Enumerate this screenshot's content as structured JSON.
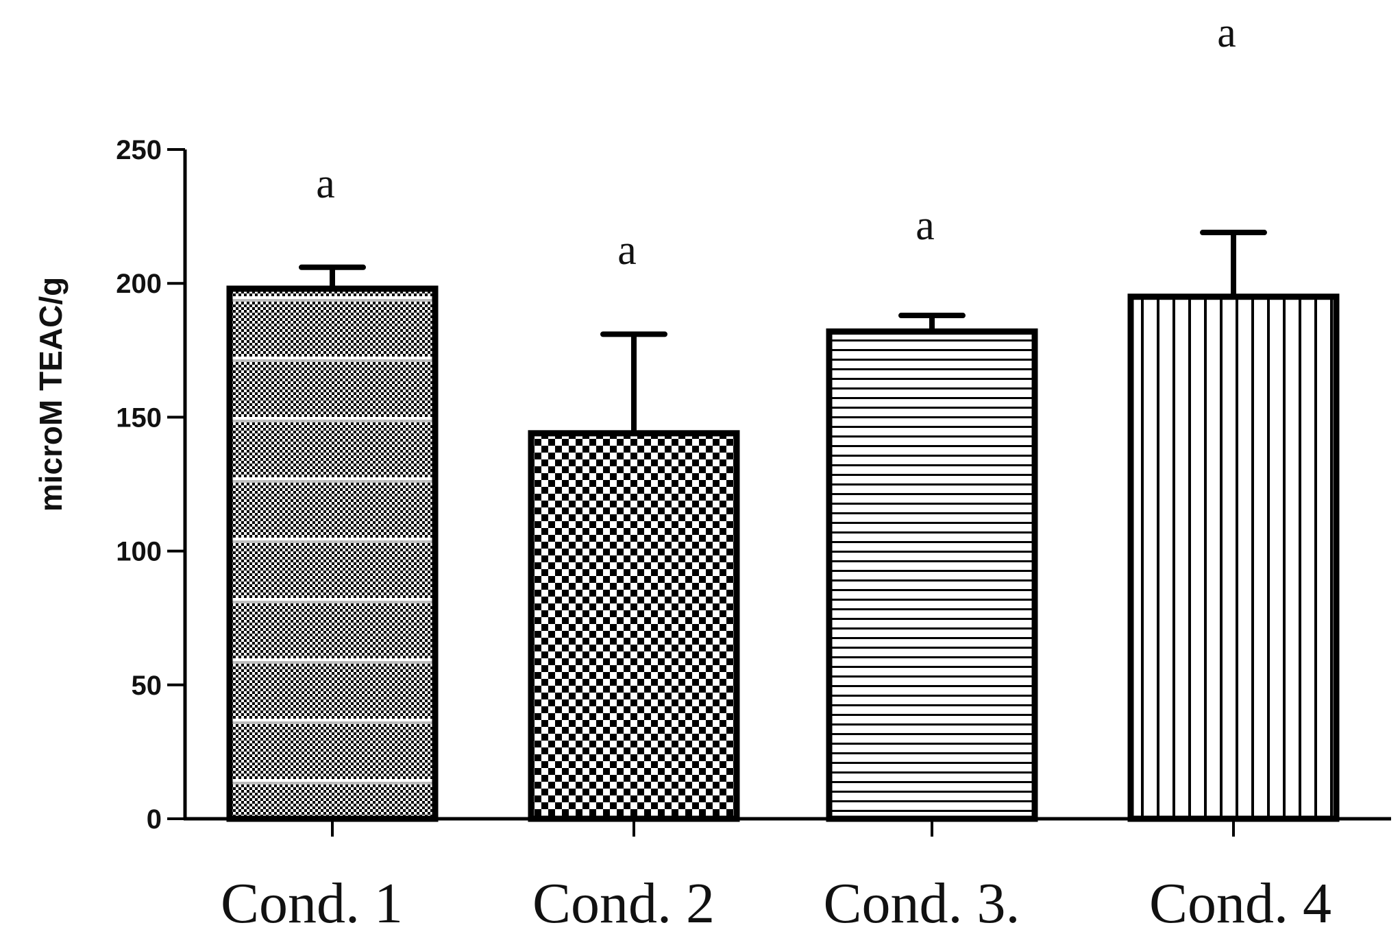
{
  "chart_data": {
    "type": "bar",
    "title": "",
    "xlabel": "",
    "ylabel": "microM TEAC/g",
    "ylim": [
      0,
      250
    ],
    "yticks": [
      0,
      50,
      100,
      150,
      200,
      250
    ],
    "grid": false,
    "legend": "none",
    "categories": [
      "Cond. 1",
      "Cond. 2",
      "Cond. 3.",
      "Cond. 4"
    ],
    "values": [
      198,
      144,
      182,
      195
    ],
    "errors": [
      8,
      37,
      6,
      24
    ],
    "significance_labels": [
      "a",
      "a",
      "a",
      "a"
    ],
    "fill_patterns": [
      "fine-dots-with-light-stripes",
      "checkerboard",
      "horizontal-lines",
      "vertical-lines"
    ],
    "colors": {
      "ink": "#000000",
      "background": "#ffffff"
    }
  }
}
